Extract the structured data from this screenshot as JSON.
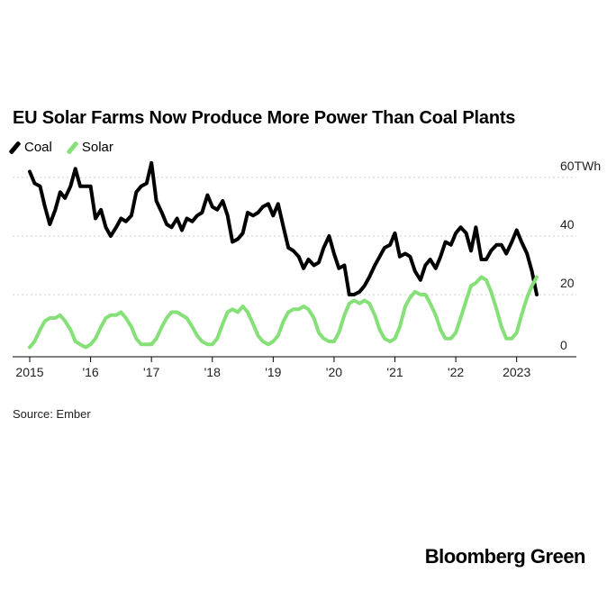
{
  "chart_data": {
    "type": "line",
    "title": "EU Solar Farms Now Produce More Power Than Coal Plants",
    "xlabel": "",
    "ylabel": "",
    "unit": "TWh",
    "ylim": [
      0,
      60
    ],
    "xlim": [
      2015.0,
      2023.75
    ],
    "grid": true,
    "legend": "top-left",
    "y_ticks": [
      {
        "value": 60,
        "label": "60TWh"
      },
      {
        "value": 40,
        "label": "40"
      },
      {
        "value": 20,
        "label": "20"
      },
      {
        "value": 0,
        "label": "0"
      }
    ],
    "x_ticks": [
      {
        "value": 2015,
        "label": "2015"
      },
      {
        "value": 2016,
        "label": "'16"
      },
      {
        "value": 2017,
        "label": "'17"
      },
      {
        "value": 2018,
        "label": "'18"
      },
      {
        "value": 2019,
        "label": "'19"
      },
      {
        "value": 2020,
        "label": "'20"
      },
      {
        "value": 2021,
        "label": "'21"
      },
      {
        "value": 2022,
        "label": "'22"
      },
      {
        "value": 2023,
        "label": "2023"
      }
    ],
    "series": [
      {
        "name": "Coal",
        "color": "#000000",
        "x": [
          2015.0,
          2015.08,
          2015.17,
          2015.25,
          2015.33,
          2015.42,
          2015.5,
          2015.58,
          2015.67,
          2015.75,
          2015.83,
          2015.92,
          2016.0,
          2016.08,
          2016.17,
          2016.25,
          2016.33,
          2016.42,
          2016.5,
          2016.58,
          2016.67,
          2016.75,
          2016.83,
          2016.92,
          2017.0,
          2017.08,
          2017.17,
          2017.25,
          2017.33,
          2017.42,
          2017.5,
          2017.58,
          2017.67,
          2017.75,
          2017.83,
          2017.92,
          2018.0,
          2018.08,
          2018.17,
          2018.25,
          2018.33,
          2018.42,
          2018.5,
          2018.58,
          2018.67,
          2018.75,
          2018.83,
          2018.92,
          2019.0,
          2019.08,
          2019.17,
          2019.25,
          2019.33,
          2019.42,
          2019.5,
          2019.58,
          2019.67,
          2019.75,
          2019.83,
          2019.92,
          2020.0,
          2020.08,
          2020.17,
          2020.25,
          2020.33,
          2020.42,
          2020.5,
          2020.58,
          2020.67,
          2020.75,
          2020.83,
          2020.92,
          2021.0,
          2021.08,
          2021.17,
          2021.25,
          2021.33,
          2021.42,
          2021.5,
          2021.58,
          2021.67,
          2021.75,
          2021.83,
          2021.92,
          2022.0,
          2022.08,
          2022.17,
          2022.25,
          2022.33,
          2022.42,
          2022.5,
          2022.58,
          2022.67,
          2022.75,
          2022.83,
          2022.92,
          2023.0,
          2023.08,
          2023.17,
          2023.25,
          2023.33
        ],
        "values": [
          62,
          58,
          57,
          50,
          44,
          49,
          55,
          53,
          57,
          63,
          57,
          57,
          57,
          46,
          49,
          43,
          40,
          43,
          46,
          45,
          47,
          55,
          57,
          58,
          65,
          52,
          48,
          44,
          43,
          46,
          42,
          46,
          45,
          47,
          48,
          54,
          50,
          49,
          52,
          47,
          38,
          39,
          41,
          48,
          47,
          48,
          50,
          51,
          47,
          51,
          43,
          36,
          35,
          33,
          29,
          32,
          30,
          31,
          36,
          40,
          34,
          29,
          30,
          20,
          20,
          21,
          23,
          26,
          30,
          33,
          36,
          37,
          41,
          33,
          34,
          33,
          28,
          25,
          30,
          32,
          29,
          33,
          38,
          37,
          41,
          43,
          41,
          35,
          43,
          32,
          32,
          35,
          37,
          37,
          34,
          38,
          42,
          38,
          34,
          28,
          20
        ]
      },
      {
        "name": "Solar",
        "color": "#86e078",
        "x": [
          2015.0,
          2015.08,
          2015.17,
          2015.25,
          2015.33,
          2015.42,
          2015.5,
          2015.58,
          2015.67,
          2015.75,
          2015.83,
          2015.92,
          2016.0,
          2016.08,
          2016.17,
          2016.25,
          2016.33,
          2016.42,
          2016.5,
          2016.58,
          2016.67,
          2016.75,
          2016.83,
          2016.92,
          2017.0,
          2017.08,
          2017.17,
          2017.25,
          2017.33,
          2017.42,
          2017.5,
          2017.58,
          2017.67,
          2017.75,
          2017.83,
          2017.92,
          2018.0,
          2018.08,
          2018.17,
          2018.25,
          2018.33,
          2018.42,
          2018.5,
          2018.58,
          2018.67,
          2018.75,
          2018.83,
          2018.92,
          2019.0,
          2019.08,
          2019.17,
          2019.25,
          2019.33,
          2019.42,
          2019.5,
          2019.58,
          2019.67,
          2019.75,
          2019.83,
          2019.92,
          2020.0,
          2020.08,
          2020.17,
          2020.25,
          2020.33,
          2020.42,
          2020.5,
          2020.58,
          2020.67,
          2020.75,
          2020.83,
          2020.92,
          2021.0,
          2021.08,
          2021.17,
          2021.25,
          2021.33,
          2021.42,
          2021.5,
          2021.58,
          2021.67,
          2021.75,
          2021.83,
          2021.92,
          2022.0,
          2022.08,
          2022.17,
          2022.25,
          2022.33,
          2022.42,
          2022.5,
          2022.58,
          2022.67,
          2022.75,
          2022.83,
          2022.92,
          2023.0,
          2023.08,
          2023.17,
          2023.25,
          2023.33
        ],
        "values": [
          2,
          4,
          8,
          11,
          12,
          12,
          13,
          11,
          8,
          4,
          3,
          2,
          3,
          5,
          9,
          12,
          13,
          13,
          14,
          12,
          9,
          5,
          3,
          3,
          3,
          5,
          9,
          12,
          14,
          14,
          13,
          12,
          9,
          6,
          4,
          3,
          3,
          5,
          10,
          14,
          15,
          14,
          16,
          14,
          10,
          6,
          4,
          3,
          4,
          6,
          11,
          14,
          15,
          15,
          16,
          15,
          12,
          7,
          5,
          4,
          4,
          7,
          13,
          17,
          18,
          17,
          18,
          17,
          13,
          8,
          5,
          4,
          5,
          9,
          16,
          19,
          21,
          20,
          20,
          17,
          13,
          8,
          5,
          5,
          7,
          12,
          18,
          23,
          24,
          26,
          25,
          21,
          15,
          9,
          5,
          5,
          7,
          13,
          19,
          23,
          26
        ]
      }
    ]
  },
  "source_text": "Source: Ember",
  "brand_text": "Bloomberg Green"
}
